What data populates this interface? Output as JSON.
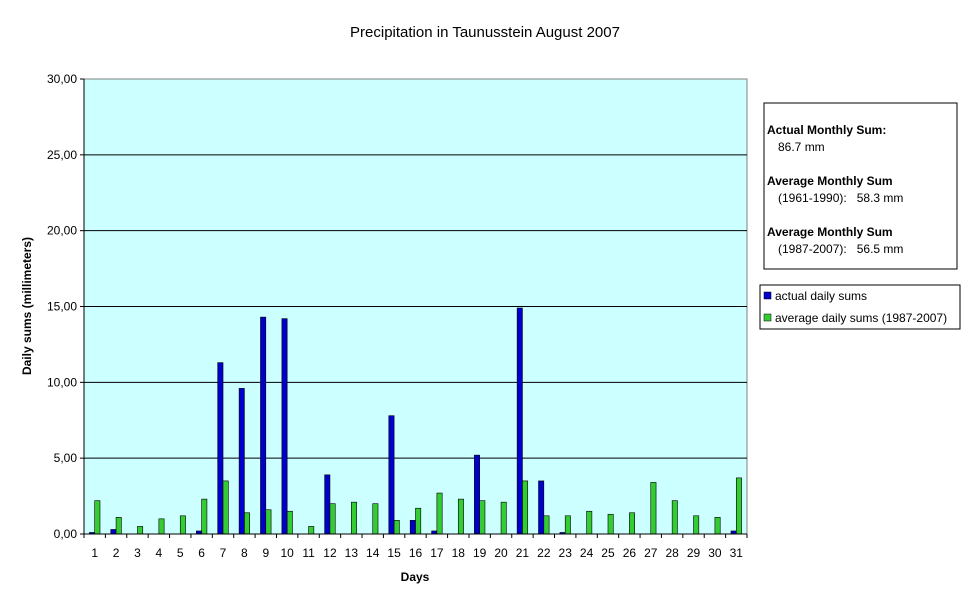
{
  "chart_data": {
    "type": "bar",
    "title": "Precipitation in Taunusstein  August  2007",
    "xlabel": "Days",
    "ylabel": "Daily sums  (millimeters)",
    "ylim": [
      0,
      30
    ],
    "y_ticks": [
      "0,00",
      "5,00",
      "10,00",
      "15,00",
      "20,00",
      "25,00",
      "30,00"
    ],
    "categories": [
      "1",
      "2",
      "3",
      "4",
      "5",
      "6",
      "7",
      "8",
      "9",
      "10",
      "11",
      "12",
      "13",
      "14",
      "15",
      "16",
      "17",
      "18",
      "19",
      "20",
      "21",
      "22",
      "23",
      "24",
      "25",
      "26",
      "27",
      "28",
      "29",
      "30",
      "31"
    ],
    "series": [
      {
        "name": "actual daily sums",
        "color": "#0000cc",
        "values": [
          0.1,
          0.3,
          0,
          0,
          0,
          0.2,
          11.3,
          9.6,
          14.3,
          14.2,
          0,
          3.9,
          0,
          0,
          7.8,
          0.9,
          0.2,
          0,
          5.2,
          0,
          14.9,
          3.5,
          0.1,
          0,
          0,
          0,
          0,
          0,
          0,
          0,
          0.2
        ]
      },
      {
        "name": "average daily sums (1987-2007)",
        "color": "#33cc33",
        "values": [
          2.2,
          1.1,
          0.5,
          1.0,
          1.2,
          2.3,
          3.5,
          1.4,
          1.6,
          1.5,
          0.5,
          2.0,
          2.1,
          2.0,
          0.9,
          1.7,
          2.7,
          2.3,
          2.2,
          2.1,
          3.5,
          1.2,
          1.2,
          1.5,
          1.3,
          1.4,
          3.4,
          2.2,
          1.2,
          1.1,
          3.7
        ]
      }
    ],
    "plot_background": "#ccffff",
    "grid": true,
    "legend_position": "right"
  },
  "info_box": {
    "actual_heading": "Actual Monthly Sum:",
    "actual_value": "86.7 mm",
    "avg1_heading": "Average Monthly Sum",
    "avg1_detail": "(1961-1990):   58.3 mm",
    "avg2_heading": "Average Monthly Sum",
    "avg2_detail": "(1987-2007):   56.5 mm"
  }
}
